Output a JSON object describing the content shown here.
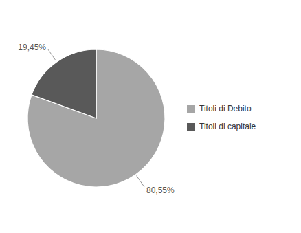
{
  "chart_data": {
    "type": "pie",
    "categories": [
      "Titoli di Debito",
      "Titoli di capitale"
    ],
    "values": [
      80.55,
      19.45
    ],
    "value_labels": [
      "80,55%",
      "19,45%"
    ],
    "colors": [
      "#a6a6a6",
      "#595959"
    ],
    "data_labels": true,
    "legend": "right"
  }
}
